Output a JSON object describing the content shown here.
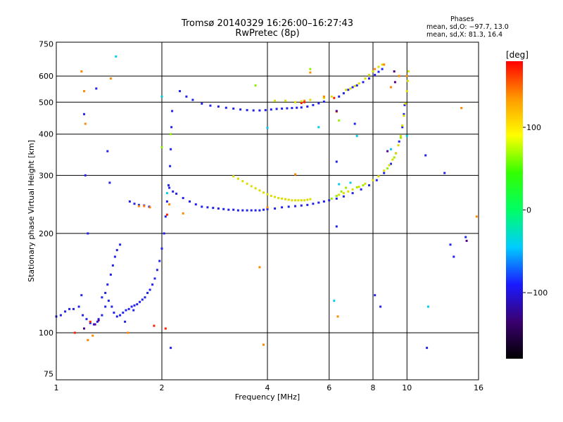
{
  "header": {
    "title_line1": "Tromsø 20140329 16:26:00–16:27:43",
    "title_line2": "RwPretec (8p)"
  },
  "phase_box": {
    "heading": "Phases",
    "line1": "mean, sd,O: −97.7, 13.0",
    "line2": "mean, sd,X:  81.3, 16.4"
  },
  "colorbar": {
    "unit_label": "[deg]",
    "ticks": [
      {
        "value": 100,
        "label": "100"
      },
      {
        "value": 0,
        "label": "0"
      },
      {
        "value": -100,
        "label": "−100"
      }
    ],
    "range": [
      -180,
      180
    ],
    "colormap": [
      "#000000",
      "#3a0070",
      "#1a1aff",
      "#00ccff",
      "#00ff66",
      "#33ff00",
      "#ffff00",
      "#ff9900",
      "#ff0000"
    ]
  },
  "chart_data": {
    "type": "scatter",
    "title": "Tromsø 20140329 16:26:00–16:27:43",
    "subtitle": "RwPretec (8p)",
    "xlabel": "Frequency [MHz]",
    "ylabel": "Stationary phase Virtual Height [km]",
    "x_scale": "log",
    "y_scale": "log",
    "xlim": [
      1,
      16
    ],
    "ylim": [
      72,
      760
    ],
    "x_ticks": [
      1,
      2,
      4,
      6,
      8,
      10,
      16
    ],
    "y_ticks": [
      75,
      100,
      200,
      300,
      400,
      500,
      600,
      750
    ],
    "grid": true,
    "series": [
      {
        "color": "#2222ee",
        "points": [
          [
            1.0,
            112
          ],
          [
            1.03,
            113
          ],
          [
            1.06,
            116
          ],
          [
            1.09,
            118
          ],
          [
            1.12,
            118
          ],
          [
            1.16,
            120
          ],
          [
            1.19,
            113
          ],
          [
            1.22,
            110
          ],
          [
            1.25,
            107
          ],
          [
            1.28,
            106
          ],
          [
            1.32,
            110
          ],
          [
            1.35,
            113
          ],
          [
            1.38,
            120
          ],
          [
            1.41,
            125
          ],
          [
            1.44,
            120
          ],
          [
            1.46,
            115
          ],
          [
            1.49,
            112
          ],
          [
            1.52,
            113
          ],
          [
            1.55,
            115
          ],
          [
            1.58,
            117
          ],
          [
            1.61,
            118
          ],
          [
            1.64,
            120
          ],
          [
            1.67,
            121
          ],
          [
            1.7,
            122
          ],
          [
            1.73,
            124
          ],
          [
            1.76,
            126
          ],
          [
            1.79,
            128
          ],
          [
            1.82,
            132
          ],
          [
            1.85,
            135
          ],
          [
            1.88,
            140
          ],
          [
            1.91,
            146
          ],
          [
            1.94,
            155
          ],
          [
            1.97,
            165
          ],
          [
            2.0,
            180
          ],
          [
            2.03,
            200
          ],
          [
            2.05,
            225
          ],
          [
            2.07,
            250
          ],
          [
            2.09,
            280
          ],
          [
            2.11,
            320
          ],
          [
            2.12,
            360
          ],
          [
            2.13,
            420
          ],
          [
            2.14,
            470
          ],
          [
            1.43,
            150
          ],
          [
            1.45,
            160
          ],
          [
            1.47,
            170
          ],
          [
            1.49,
            178
          ],
          [
            1.52,
            185
          ],
          [
            1.4,
            140
          ],
          [
            1.38,
            132
          ],
          [
            1.35,
            128
          ],
          [
            1.62,
            250
          ],
          [
            1.67,
            246
          ],
          [
            1.72,
            244
          ],
          [
            1.78,
            243
          ],
          [
            1.84,
            241
          ],
          [
            2.1,
            275
          ],
          [
            2.15,
            268
          ],
          [
            2.2,
            264
          ],
          [
            2.3,
            256
          ],
          [
            2.4,
            250
          ],
          [
            2.5,
            245
          ],
          [
            2.6,
            241
          ],
          [
            2.7,
            240
          ],
          [
            2.8,
            239
          ],
          [
            2.9,
            238
          ],
          [
            3.0,
            237
          ],
          [
            3.1,
            236
          ],
          [
            3.2,
            236
          ],
          [
            3.3,
            235
          ],
          [
            3.4,
            235
          ],
          [
            3.5,
            235
          ],
          [
            3.6,
            235
          ],
          [
            3.7,
            235
          ],
          [
            3.8,
            235
          ],
          [
            3.9,
            236
          ],
          [
            4.0,
            237
          ],
          [
            4.2,
            238
          ],
          [
            4.4,
            240
          ],
          [
            4.6,
            241
          ],
          [
            4.8,
            242
          ],
          [
            5.0,
            243
          ],
          [
            5.2,
            244
          ],
          [
            5.4,
            246
          ],
          [
            5.6,
            248
          ],
          [
            5.8,
            250
          ],
          [
            6.0,
            252
          ],
          [
            6.3,
            255
          ],
          [
            6.6,
            259
          ],
          [
            7.0,
            265
          ],
          [
            7.4,
            272
          ],
          [
            7.8,
            280
          ],
          [
            8.2,
            290
          ],
          [
            8.6,
            305
          ],
          [
            9.0,
            325
          ],
          [
            9.3,
            350
          ],
          [
            9.5,
            380
          ],
          [
            9.7,
            420
          ],
          [
            9.8,
            460
          ],
          [
            9.85,
            490
          ],
          [
            2.25,
            540
          ],
          [
            2.35,
            520
          ],
          [
            2.45,
            508
          ],
          [
            2.6,
            495
          ],
          [
            2.75,
            488
          ],
          [
            2.9,
            485
          ],
          [
            3.05,
            481
          ],
          [
            3.2,
            478
          ],
          [
            3.35,
            475
          ],
          [
            3.5,
            473
          ],
          [
            3.65,
            472
          ],
          [
            3.8,
            472
          ],
          [
            3.95,
            473
          ],
          [
            4.1,
            475
          ],
          [
            4.25,
            477
          ],
          [
            4.4,
            478
          ],
          [
            4.55,
            479
          ],
          [
            4.7,
            480
          ],
          [
            4.85,
            481
          ],
          [
            5.0,
            482
          ],
          [
            5.2,
            485
          ],
          [
            5.4,
            490
          ],
          [
            5.6,
            496
          ],
          [
            5.8,
            502
          ],
          [
            6.4,
            520
          ],
          [
            6.6,
            532
          ],
          [
            6.8,
            545
          ],
          [
            7.0,
            555
          ],
          [
            7.2,
            562
          ],
          [
            7.5,
            575
          ],
          [
            7.8,
            590
          ],
          [
            8.1,
            605
          ],
          [
            8.3,
            618
          ],
          [
            8.5,
            630
          ],
          [
            1.2,
            460
          ],
          [
            1.21,
            300
          ],
          [
            1.3,
            550
          ],
          [
            1.4,
            355
          ],
          [
            1.42,
            285
          ],
          [
            1.23,
            200
          ],
          [
            1.31,
            108
          ],
          [
            1.66,
            117
          ],
          [
            2.12,
            90
          ],
          [
            6.3,
            210
          ],
          [
            6.3,
            330
          ],
          [
            7.1,
            430
          ],
          [
            8.1,
            130
          ],
          [
            8.4,
            120
          ],
          [
            11.3,
            345
          ],
          [
            11.4,
            90
          ],
          [
            12.8,
            305
          ],
          [
            13.3,
            185
          ],
          [
            13.6,
            170
          ],
          [
            14.7,
            195
          ],
          [
            1.18,
            130
          ],
          [
            1.57,
            108
          ]
        ]
      },
      {
        "color": "#dddd00",
        "points": [
          [
            3.2,
            298
          ],
          [
            3.3,
            293
          ],
          [
            3.4,
            288
          ],
          [
            3.5,
            283
          ],
          [
            3.6,
            278
          ],
          [
            3.7,
            274
          ],
          [
            3.8,
            270
          ],
          [
            3.9,
            266
          ],
          [
            4.0,
            263
          ],
          [
            4.1,
            260
          ],
          [
            4.2,
            258
          ],
          [
            4.3,
            256
          ],
          [
            4.4,
            255
          ],
          [
            4.5,
            254
          ],
          [
            4.6,
            253
          ],
          [
            4.7,
            252
          ],
          [
            4.8,
            252
          ],
          [
            4.9,
            252
          ],
          [
            5.0,
            252
          ],
          [
            5.1,
            252
          ],
          [
            5.2,
            253
          ],
          [
            5.3,
            254
          ],
          [
            6.4,
            262
          ],
          [
            6.6,
            265
          ],
          [
            6.8,
            268
          ],
          [
            7.0,
            272
          ],
          [
            7.3,
            277
          ],
          [
            7.6,
            283
          ],
          [
            8.0,
            290
          ],
          [
            8.3,
            298
          ],
          [
            8.6,
            310
          ],
          [
            8.9,
            322
          ],
          [
            9.1,
            335
          ],
          [
            9.3,
            350
          ],
          [
            9.45,
            370
          ],
          [
            9.6,
            395
          ],
          [
            9.7,
            425
          ],
          [
            9.8,
            455
          ],
          [
            9.9,
            495
          ],
          [
            10.0,
            540
          ],
          [
            10.05,
            580
          ],
          [
            10.1,
            620
          ],
          [
            4.2,
            505
          ],
          [
            4.5,
            505
          ],
          [
            4.8,
            500
          ],
          [
            5.0,
            503
          ],
          [
            5.3,
            508
          ],
          [
            6.7,
            545
          ],
          [
            6.9,
            550
          ],
          [
            7.1,
            560
          ],
          [
            7.3,
            570
          ],
          [
            7.6,
            590
          ],
          [
            7.8,
            605
          ],
          [
            8.0,
            620
          ],
          [
            8.3,
            640
          ],
          [
            8.5,
            650
          ],
          [
            5.8,
            515
          ],
          [
            6.1,
            520
          ]
        ]
      },
      {
        "color": "#99ee00",
        "points": [
          [
            6.1,
            255
          ],
          [
            6.3,
            260
          ],
          [
            6.5,
            268
          ],
          [
            6.7,
            275
          ],
          [
            7.2,
            276
          ],
          [
            7.5,
            280
          ],
          [
            8.8,
            315
          ],
          [
            9.2,
            340
          ],
          [
            9.6,
            390
          ],
          [
            3.7,
            562
          ],
          [
            6.4,
            440
          ],
          [
            2.12,
            400
          ],
          [
            5.3,
            630
          ],
          [
            2.0,
            365
          ]
        ]
      },
      {
        "color": "#00ccee",
        "points": [
          [
            1.48,
            688
          ],
          [
            2.07,
            265
          ],
          [
            4.0,
            418
          ],
          [
            5.6,
            420
          ],
          [
            6.4,
            282
          ],
          [
            6.9,
            285
          ],
          [
            7.2,
            395
          ],
          [
            9.0,
            360
          ],
          [
            10.0,
            395
          ],
          [
            11.5,
            120
          ],
          [
            2.0,
            520
          ],
          [
            6.2,
            125
          ]
        ]
      },
      {
        "color": "#ff8800",
        "points": [
          [
            1.18,
            620
          ],
          [
            1.2,
            540
          ],
          [
            1.21,
            430
          ],
          [
            1.43,
            590
          ],
          [
            1.78,
            242
          ],
          [
            1.85,
            240
          ],
          [
            2.1,
            245
          ],
          [
            2.3,
            230
          ],
          [
            3.8,
            158
          ],
          [
            4.0,
            240
          ],
          [
            5.3,
            615
          ],
          [
            5.8,
            520
          ],
          [
            6.3,
            468
          ],
          [
            6.35,
            112
          ],
          [
            8.1,
            630
          ],
          [
            8.6,
            650
          ],
          [
            9.0,
            555
          ],
          [
            9.5,
            600
          ],
          [
            10.0,
            600
          ],
          [
            14.3,
            480
          ],
          [
            15.8,
            225
          ],
          [
            1.27,
            98
          ],
          [
            1.23,
            95
          ],
          [
            4.8,
            302
          ],
          [
            5.1,
            505
          ],
          [
            3.9,
            92
          ],
          [
            1.6,
            100
          ],
          [
            1.72,
            242
          ]
        ]
      },
      {
        "color": "#ff2200",
        "points": [
          [
            6.2,
            515
          ],
          [
            5.1,
            500
          ],
          [
            1.13,
            100
          ],
          [
            2.07,
            228
          ],
          [
            1.25,
            108
          ],
          [
            1.9,
            105
          ],
          [
            2.05,
            103
          ],
          [
            5.0,
            497
          ]
        ]
      },
      {
        "color": "#550088",
        "points": [
          [
            1.32,
            109
          ],
          [
            1.29,
            106
          ],
          [
            1.2,
            103
          ],
          [
            9.2,
            620
          ],
          [
            9.25,
            575
          ],
          [
            14.8,
            190
          ],
          [
            6.3,
            470
          ],
          [
            8.8,
            355
          ]
        ]
      }
    ]
  }
}
